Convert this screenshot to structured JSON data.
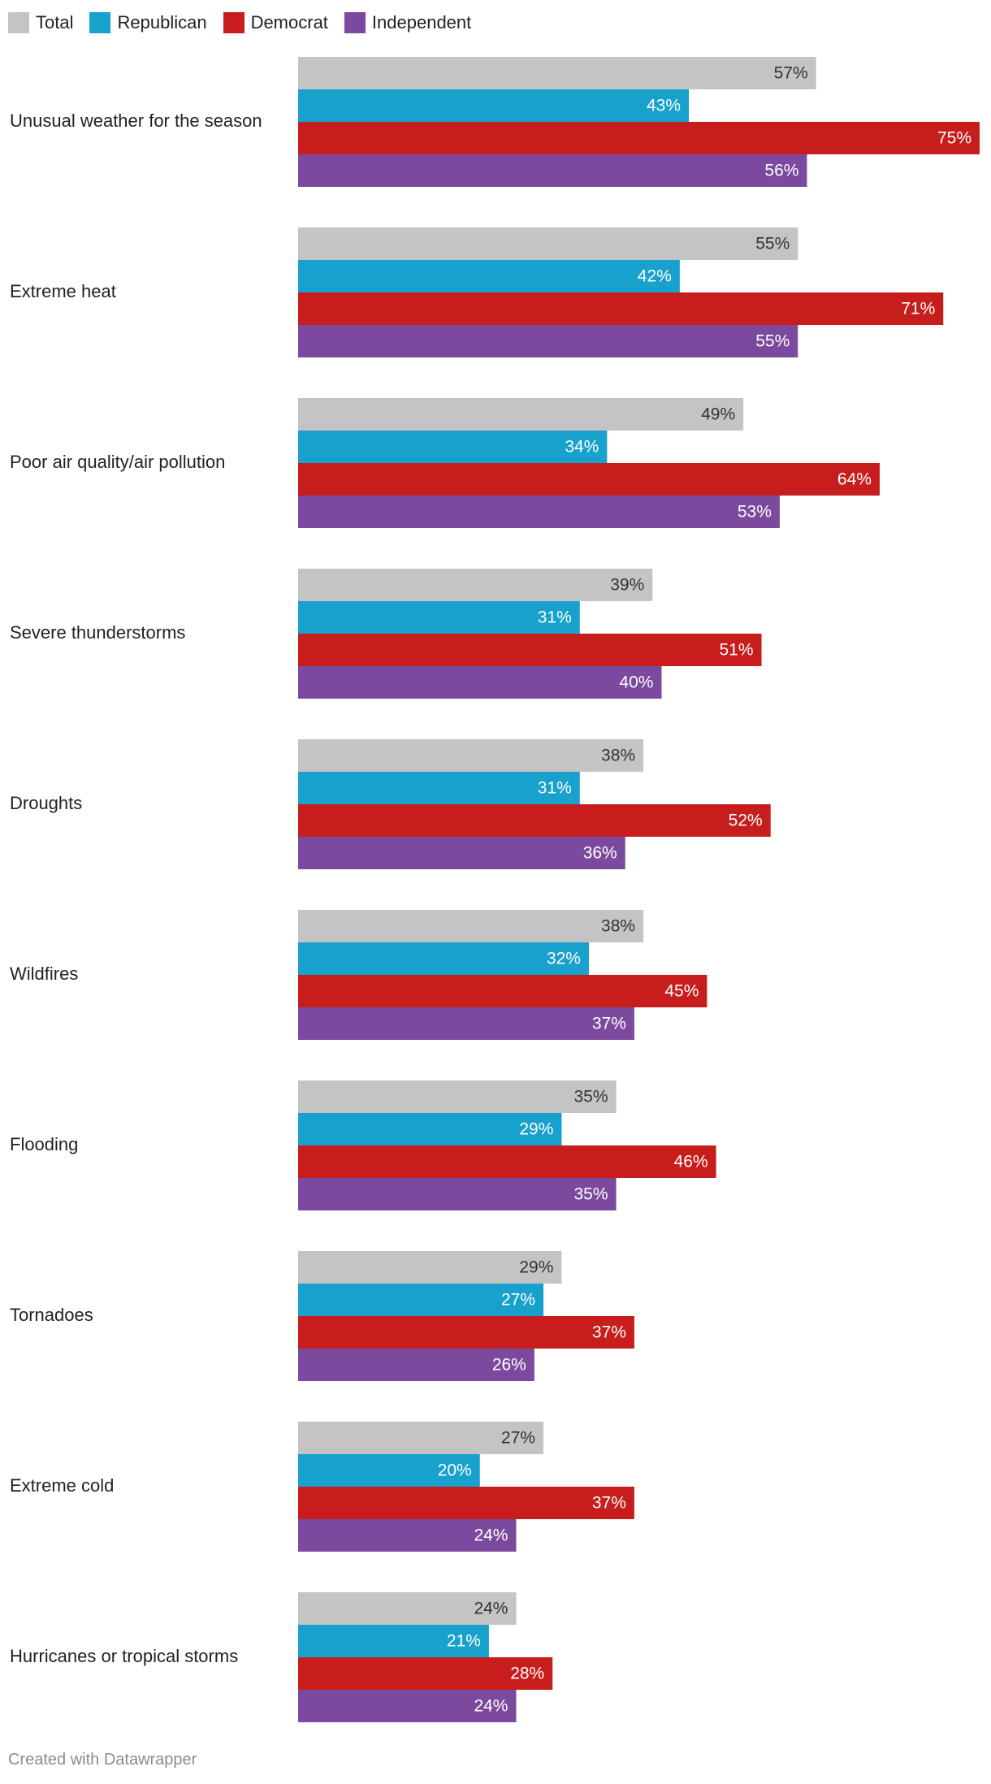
{
  "chart_data": {
    "type": "bar",
    "orientation": "horizontal",
    "grouped": true,
    "categories": [
      "Unusual weather for the season",
      "Extreme heat",
      "Poor air quality/air pollution",
      "Severe thunderstorms",
      "Droughts",
      "Wildfires",
      "Flooding",
      "Tornadoes",
      "Extreme cold",
      "Hurricanes or tropical storms"
    ],
    "series": [
      {
        "name": "Total",
        "color": "#c4c4c4",
        "label_color": "#333333",
        "values": [
          57,
          55,
          49,
          39,
          38,
          38,
          35,
          29,
          27,
          24
        ]
      },
      {
        "name": "Republican",
        "color": "#18a1cd",
        "label_color": "#ffffff",
        "values": [
          43,
          42,
          34,
          31,
          31,
          32,
          29,
          27,
          20,
          21
        ]
      },
      {
        "name": "Democrat",
        "color": "#c71e1d",
        "label_color": "#ffffff",
        "values": [
          75,
          71,
          64,
          51,
          52,
          45,
          46,
          37,
          37,
          28
        ]
      },
      {
        "name": "Independent",
        "color": "#7b4a9e",
        "label_color": "#ffffff",
        "values": [
          56,
          55,
          53,
          40,
          36,
          37,
          35,
          26,
          24,
          24
        ]
      }
    ],
    "value_suffix": "%",
    "xlim": [
      0,
      75
    ]
  },
  "footer": {
    "credit": "Created with Datawrapper"
  }
}
